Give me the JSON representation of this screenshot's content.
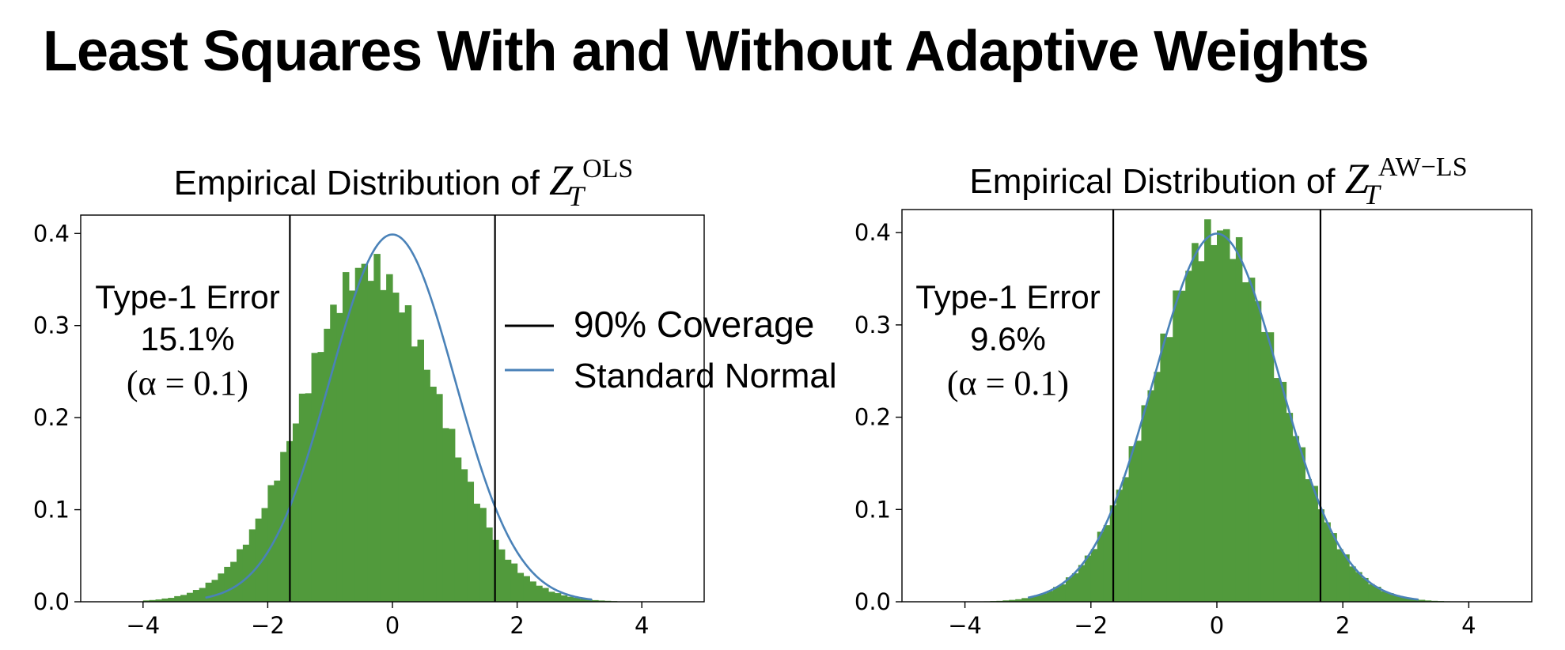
{
  "page": {
    "title": "Least Squares With and Without Adaptive Weights"
  },
  "legend": {
    "items": [
      {
        "label": "90% Coverage",
        "color": "#000000",
        "kind": "vline"
      },
      {
        "label": "Standard Normal",
        "color": "#4a82b8",
        "kind": "curve"
      }
    ]
  },
  "colors": {
    "histogram": "#519a3c",
    "normal_curve": "#4a82b8",
    "coverage_lines": "#000000"
  },
  "chart_data": [
    {
      "type": "bar",
      "title_text": "Empirical Distribution of ",
      "title_var": "Z",
      "title_sub": "T",
      "title_sup": "OLS",
      "xlabel": "",
      "ylabel": "",
      "xlim": [
        -5,
        5
      ],
      "ylim": [
        0,
        0.42
      ],
      "xticks": [
        -4,
        -2,
        0,
        2,
        4
      ],
      "xtick_labels": [
        "−4",
        "−2",
        "0",
        "2",
        "4"
      ],
      "yticks": [
        0.0,
        0.1,
        0.2,
        0.3,
        0.4
      ],
      "ytick_labels": [
        "0.0",
        "0.1",
        "0.2",
        "0.3",
        "0.4"
      ],
      "grid": false,
      "annotation": {
        "line1": "Type-1 Error",
        "line2": "15.1%",
        "line3": "(α = 0.1)"
      },
      "coverage_lines": [
        -1.645,
        1.645
      ],
      "normal_curve": {
        "mean": 0,
        "sd": 1,
        "range": [
          -3.0,
          3.2
        ]
      },
      "histogram": {
        "mean": -0.25,
        "sd": 1.1,
        "peak": 0.36,
        "range": [
          -4.0,
          3.6
        ],
        "bin_width": 0.1
      }
    },
    {
      "type": "bar",
      "title_text": "Empirical Distribution of ",
      "title_var": "Z",
      "title_sub": "T",
      "title_sup": "AW−LS",
      "xlabel": "",
      "ylabel": "",
      "xlim": [
        -5,
        5
      ],
      "ylim": [
        0,
        0.425
      ],
      "xticks": [
        -4,
        -2,
        0,
        2,
        4
      ],
      "xtick_labels": [
        "−4",
        "−2",
        "0",
        "2",
        "4"
      ],
      "yticks": [
        0.0,
        0.1,
        0.2,
        0.3,
        0.4
      ],
      "ytick_labels": [
        "0.0",
        "0.1",
        "0.2",
        "0.3",
        "0.4"
      ],
      "grid": false,
      "annotation": {
        "line1": "Type-1 Error",
        "line2": "9.6%",
        "line3": "(α = 0.1)"
      },
      "coverage_lines": [
        -1.645,
        1.645
      ],
      "normal_curve": {
        "mean": 0,
        "sd": 1,
        "range": [
          -3.0,
          3.2
        ]
      },
      "histogram": {
        "mean": 0.0,
        "sd": 1.0,
        "peak": 0.4,
        "range": [
          -3.8,
          3.7
        ],
        "bin_width": 0.1
      }
    }
  ]
}
